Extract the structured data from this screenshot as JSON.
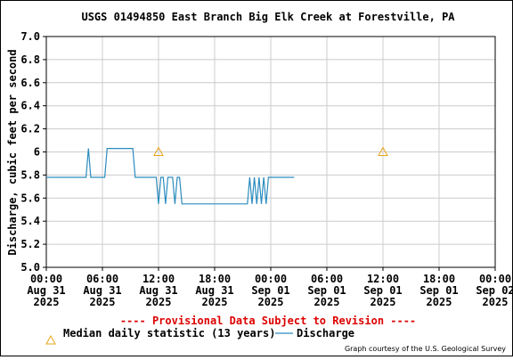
{
  "chart_data": {
    "type": "line",
    "title": "USGS 01494850 East Branch Big Elk Creek at Forestville, PA",
    "ylabel": "Discharge, cubic feet per second",
    "xlabel": "",
    "ylim": [
      5.0,
      7.0
    ],
    "yticks": [
      "5.0",
      "5.2",
      "5.4",
      "5.6",
      "5.8",
      "6",
      "6.2",
      "6.4",
      "6.6",
      "6.8",
      "7.0"
    ],
    "yticks_values": [
      5.0,
      5.2,
      5.4,
      5.6,
      5.8,
      6.0,
      6.2,
      6.4,
      6.6,
      6.8,
      7.0
    ],
    "xlim": [
      "2025-08-31 00:00",
      "2025-09-02 00:00"
    ],
    "xticks": [
      {
        "hours": 0,
        "time": "00:00",
        "day": "Aug 31",
        "year": "2025"
      },
      {
        "hours": 6,
        "time": "06:00",
        "day": "Aug 31",
        "year": "2025"
      },
      {
        "hours": 12,
        "time": "12:00",
        "day": "Aug 31",
        "year": "2025"
      },
      {
        "hours": 18,
        "time": "18:00",
        "day": "Aug 31",
        "year": "2025"
      },
      {
        "hours": 24,
        "time": "00:00",
        "day": "Sep 01",
        "year": "2025"
      },
      {
        "hours": 30,
        "time": "06:00",
        "day": "Sep 01",
        "year": "2025"
      },
      {
        "hours": 36,
        "time": "12:00",
        "day": "Sep 01",
        "year": "2025"
      },
      {
        "hours": 42,
        "time": "18:00",
        "day": "Sep 01",
        "year": "2025"
      },
      {
        "hours": 48,
        "time": "00:00",
        "day": "Sep 02",
        "year": "2025"
      }
    ],
    "grid": true,
    "series": [
      {
        "name": "Discharge",
        "color": "#2b8cbe",
        "points": [
          [
            0.0,
            5.78
          ],
          [
            4.25,
            5.78
          ],
          [
            4.5,
            6.03
          ],
          [
            4.75,
            5.78
          ],
          [
            6.25,
            5.78
          ],
          [
            6.5,
            6.03
          ],
          [
            9.25,
            6.03
          ],
          [
            9.5,
            5.78
          ],
          [
            11.75,
            5.78
          ],
          [
            12.0,
            5.55
          ],
          [
            12.25,
            5.78
          ],
          [
            12.5,
            5.78
          ],
          [
            12.75,
            5.55
          ],
          [
            13.0,
            5.78
          ],
          [
            13.5,
            5.78
          ],
          [
            13.75,
            5.55
          ],
          [
            14.0,
            5.78
          ],
          [
            14.25,
            5.78
          ],
          [
            14.5,
            5.55
          ],
          [
            21.5,
            5.55
          ],
          [
            21.75,
            5.78
          ],
          [
            22.0,
            5.55
          ],
          [
            22.25,
            5.78
          ],
          [
            22.5,
            5.55
          ],
          [
            22.75,
            5.78
          ],
          [
            23.0,
            5.55
          ],
          [
            23.25,
            5.78
          ],
          [
            23.5,
            5.55
          ],
          [
            23.75,
            5.78
          ],
          [
            26.5,
            5.78
          ]
        ]
      },
      {
        "name": "Median daily statistic (13 years)",
        "color": "#e8a317",
        "marker": "triangle",
        "points": [
          [
            12.0,
            6.0
          ],
          [
            36.0,
            6.0
          ]
        ]
      }
    ]
  },
  "provisional_note": "---- Provisional Data Subject to Revision ----",
  "provisional_color": "#dd0000",
  "legend": {
    "median_label": "Median daily statistic (13 years)",
    "discharge_label": "Discharge"
  },
  "credit": "Graph courtesy of the U.S. Geological Survey"
}
